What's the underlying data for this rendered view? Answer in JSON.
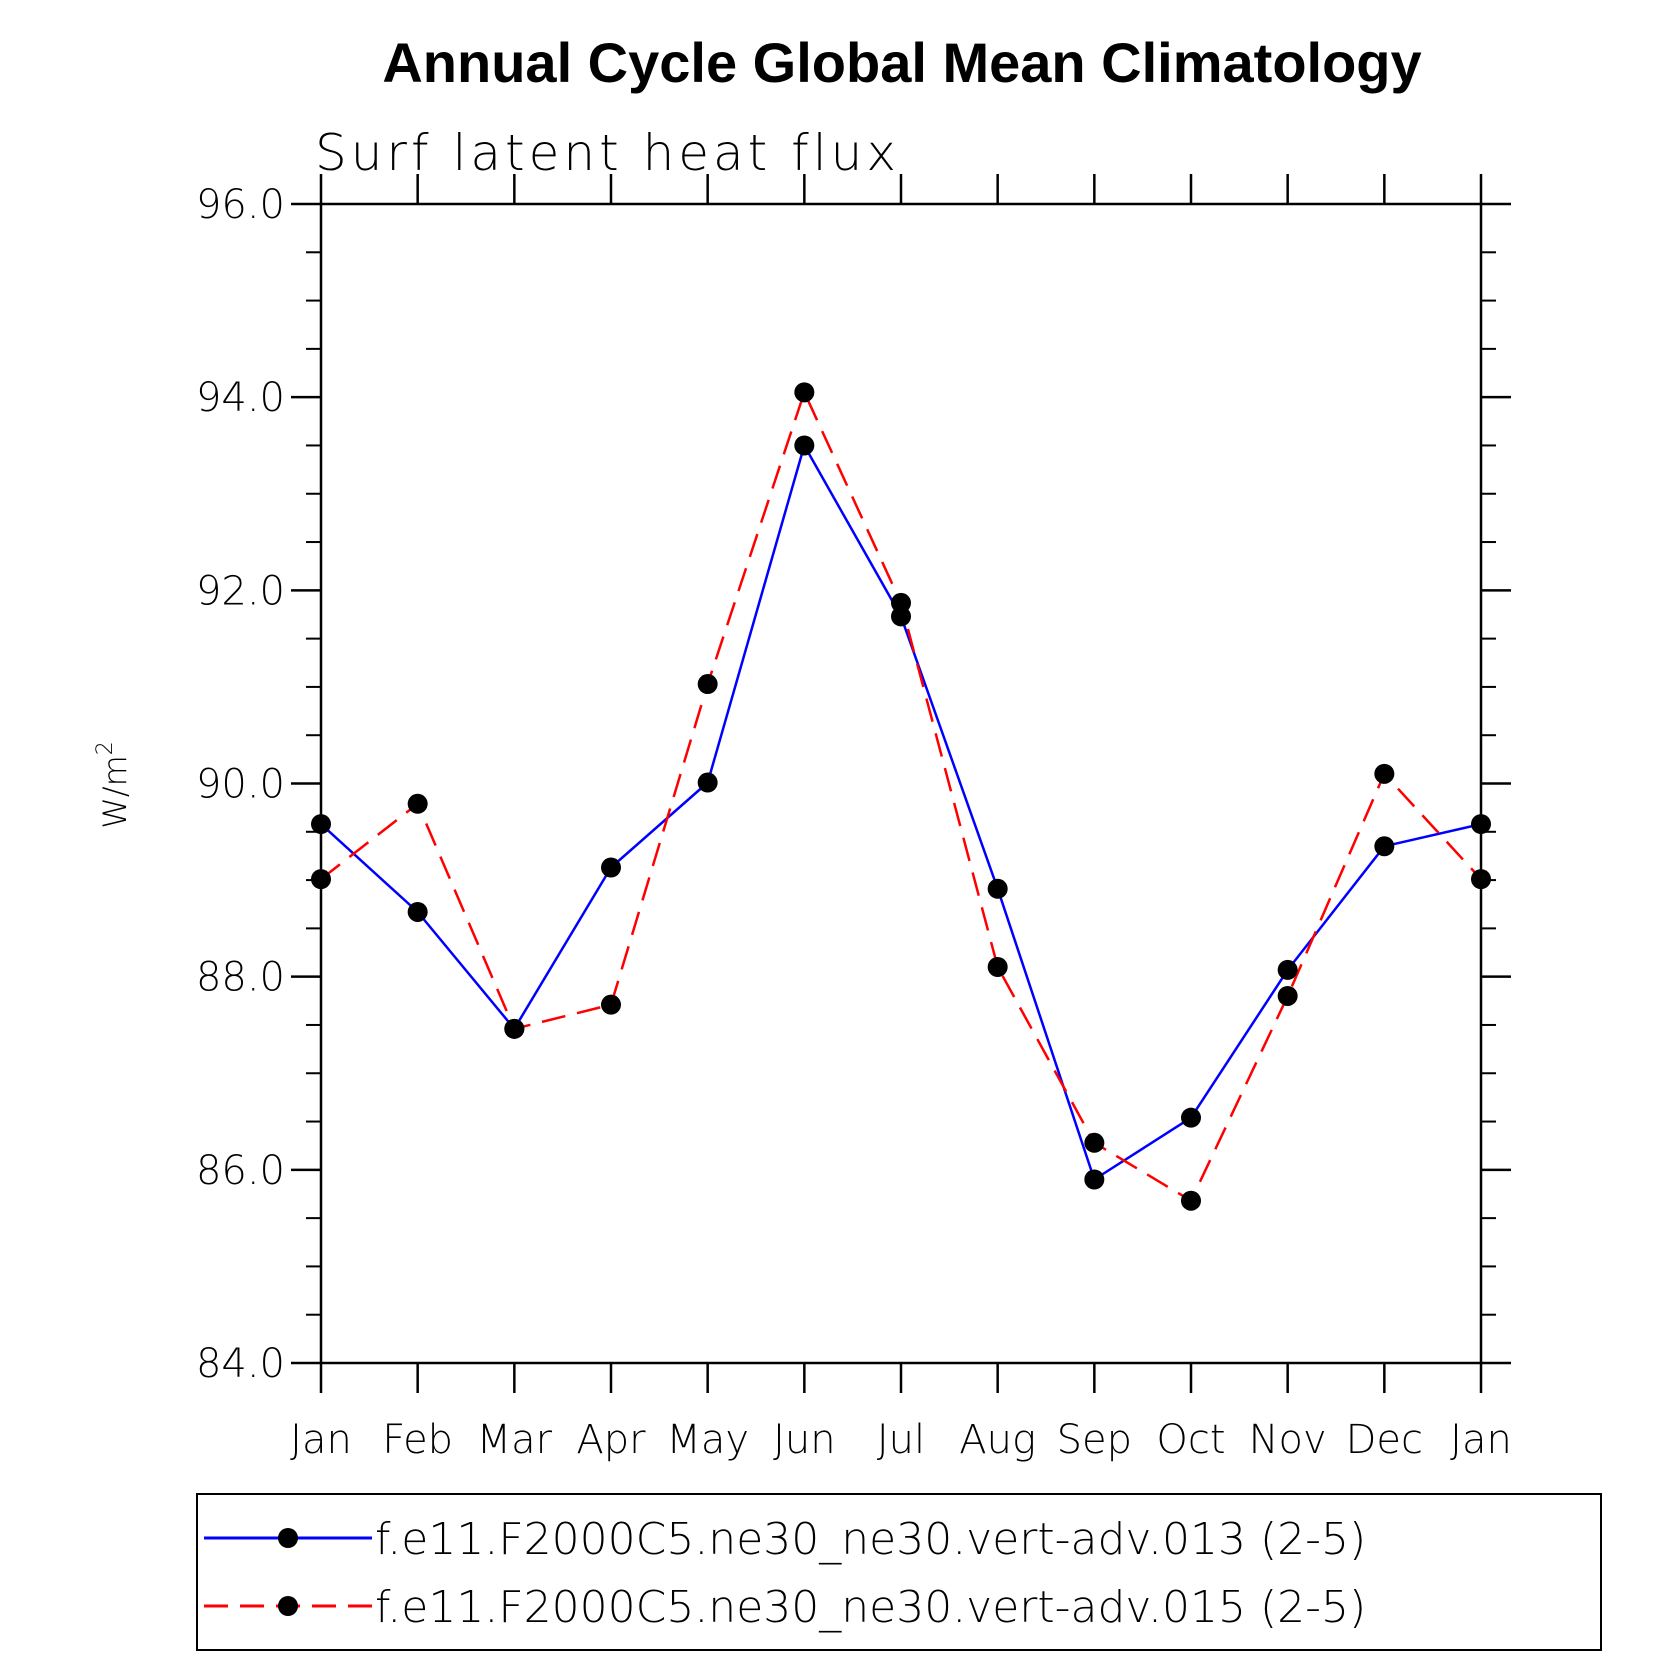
{
  "chart_data": {
    "type": "line",
    "title": "Annual Cycle Global Mean Climatology",
    "subtitle": "Surf latent heat flux",
    "ylabel": "W/m",
    "ylabel_sup": "2",
    "categories": [
      "Jan",
      "Feb",
      "Mar",
      "Apr",
      "May",
      "Jun",
      "Jul",
      "Aug",
      "Sep",
      "Oct",
      "Nov",
      "Dec",
      "Jan"
    ],
    "ylim": [
      84,
      96
    ],
    "yticks": [
      84,
      86,
      88,
      90,
      92,
      94,
      96
    ],
    "ytick_labels": [
      "84.0",
      "86.0",
      "88.0",
      "90.0",
      "92.0",
      "94.0",
      "96.0"
    ],
    "grid": false,
    "legend_position": "bottom",
    "series": [
      {
        "name": "f.e11.F2000C5.ne30_ne30.vert-adv.013 (2-5)",
        "color": "#0000ff",
        "dash": "solid",
        "values": [
          89.58,
          88.67,
          87.46,
          89.13,
          90.01,
          93.5,
          91.73,
          88.91,
          85.9,
          86.54,
          88.07,
          89.35,
          89.58
        ]
      },
      {
        "name": "f.e11.F2000C5.ne30_ne30.vert-adv.015 (2-5)",
        "color": "#ff0000",
        "dash": "dashed",
        "values": [
          89.01,
          89.79,
          87.46,
          87.71,
          91.03,
          94.05,
          91.87,
          88.1,
          86.28,
          85.68,
          87.8,
          90.1,
          89.01
        ]
      }
    ]
  }
}
